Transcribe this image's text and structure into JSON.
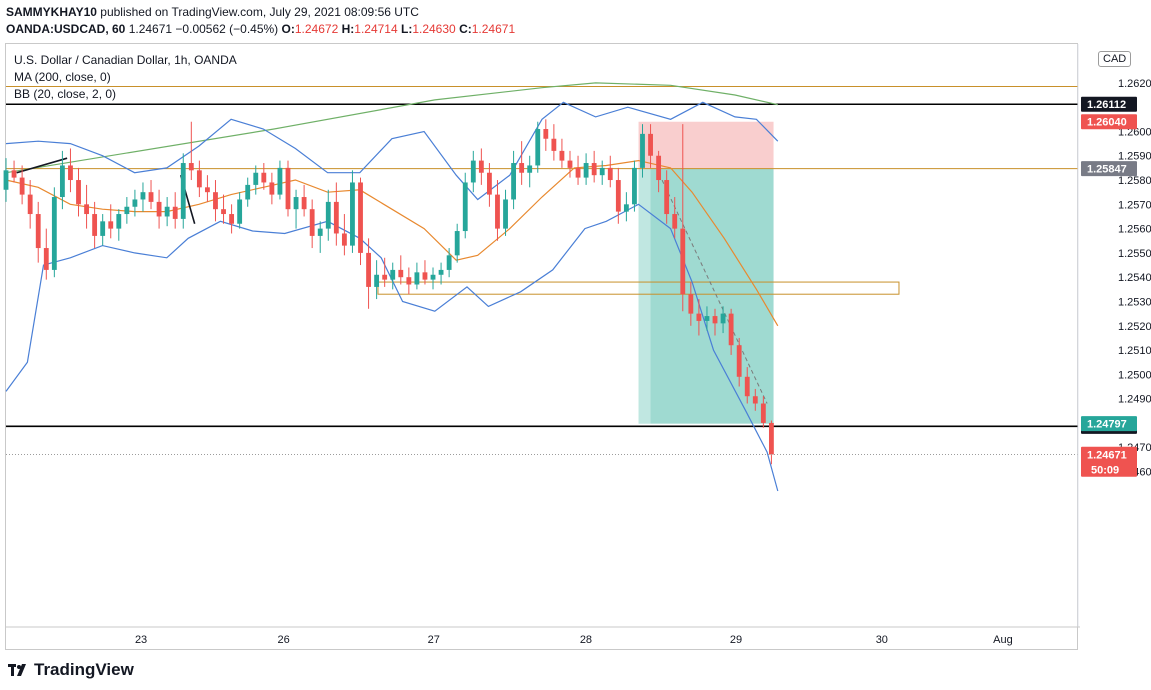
{
  "header": {
    "user": "SAMMYKHAY10",
    "published": "published on TradingView.com, July 29, 2021 08:09:56 UTC",
    "symbol": "OANDA:USDCAD, 60",
    "price": "1.24671",
    "change": "−0.00562 (−0.45%)",
    "o_label": "O:",
    "o_value": "1.24672",
    "h_label": "H:",
    "h_value": "1.24714",
    "l_label": "L:",
    "l_value": "1.24630",
    "c_label": "C:",
    "c_value": "1.24671"
  },
  "legend": {
    "title": "U.S. Dollar / Canadian Dollar, 1h, OANDA",
    "ma": "MA (200, close, 0)",
    "bb": "BB (20, close, 2, 0)"
  },
  "currency": "CAD",
  "brand": "TradingView",
  "colors": {
    "bull": "#26a69a",
    "bear": "#ef5350",
    "bb": "#4a7fd6",
    "ma": "#6fb067",
    "basis": "#e8892f",
    "level": "#c8902a",
    "stop_zone": "#f8c6c6",
    "target_zone": "#8ed3c9",
    "black": "#000000"
  },
  "chart_data": {
    "type": "candlestick",
    "title": "U.S. Dollar / Canadian Dollar, 1h, OANDA",
    "y_range": [
      1.2396,
      1.2636
    ],
    "y_ticks": [
      "1.26200",
      "1.26000",
      "1.25900",
      "1.25800",
      "1.25700",
      "1.25600",
      "1.25500",
      "1.25400",
      "1.25300",
      "1.25200",
      "1.25100",
      "1.25000",
      "1.24900",
      "1.24700",
      "1.24600"
    ],
    "x_ticks": [
      "23",
      "26",
      "27",
      "28",
      "29",
      "30",
      "Aug"
    ],
    "x_tick_positions": [
      0.126,
      0.259,
      0.399,
      0.541,
      0.681,
      0.817,
      0.93
    ],
    "horizontal_lines": [
      {
        "value": 1.26112,
        "label": "1.26112",
        "color": "#000000"
      },
      {
        "value": 1.25847,
        "label": "1.25847",
        "color": "#c8902a"
      },
      {
        "value": 1.24786,
        "label": "1.24786",
        "color": "#000000"
      }
    ],
    "price_tags": [
      {
        "value": 1.2604,
        "label": "1.26040",
        "color": "#ef5350"
      },
      {
        "value": 1.24797,
        "label": "1.24797",
        "color": "#26a69a"
      },
      {
        "value": 1.24671,
        "label": "1.24671",
        "color": "#ef5350",
        "extra": "50:09"
      }
    ],
    "zone_box": {
      "top": 1.2538,
      "bottom": 1.2533
    },
    "position": {
      "entry": 1.25847,
      "stop": 1.2604,
      "target": 1.24797
    },
    "candles": [
      [
        1.2576,
        1.2589,
        1.2571,
        1.2584
      ],
      [
        1.2584,
        1.2588,
        1.2579,
        1.2581
      ],
      [
        1.2581,
        1.2586,
        1.257,
        1.2574
      ],
      [
        1.2574,
        1.258,
        1.256,
        1.2566
      ],
      [
        1.2566,
        1.2571,
        1.2546,
        1.2552
      ],
      [
        1.2552,
        1.256,
        1.2539,
        1.2543
      ],
      [
        1.2543,
        1.2577,
        1.254,
        1.2573
      ],
      [
        1.2573,
        1.2592,
        1.2568,
        1.2586
      ],
      [
        1.2586,
        1.2593,
        1.2575,
        1.258
      ],
      [
        1.258,
        1.2585,
        1.2565,
        1.257
      ],
      [
        1.257,
        1.2578,
        1.256,
        1.2566
      ],
      [
        1.2566,
        1.2571,
        1.2552,
        1.2557
      ],
      [
        1.2557,
        1.2566,
        1.2553,
        1.2563
      ],
      [
        1.2563,
        1.257,
        1.2556,
        1.256
      ],
      [
        1.256,
        1.2568,
        1.2555,
        1.2566
      ],
      [
        1.2566,
        1.2573,
        1.2562,
        1.2569
      ],
      [
        1.2569,
        1.2576,
        1.2565,
        1.2572
      ],
      [
        1.2572,
        1.2579,
        1.2567,
        1.2575
      ],
      [
        1.2575,
        1.258,
        1.2568,
        1.2571
      ],
      [
        1.2571,
        1.2576,
        1.256,
        1.2565
      ],
      [
        1.2565,
        1.2573,
        1.2561,
        1.2569
      ],
      [
        1.2569,
        1.2575,
        1.256,
        1.2564
      ],
      [
        1.2564,
        1.2591,
        1.256,
        1.2587
      ],
      [
        1.2587,
        1.2604,
        1.258,
        1.2584
      ],
      [
        1.2584,
        1.2588,
        1.2573,
        1.2577
      ],
      [
        1.2577,
        1.2582,
        1.2571,
        1.2575
      ],
      [
        1.2575,
        1.258,
        1.2563,
        1.2568
      ],
      [
        1.2568,
        1.2574,
        1.2562,
        1.2566
      ],
      [
        1.2566,
        1.257,
        1.2558,
        1.2562
      ],
      [
        1.2562,
        1.2575,
        1.256,
        1.2572
      ],
      [
        1.2572,
        1.2581,
        1.2569,
        1.2578
      ],
      [
        1.2578,
        1.2586,
        1.2574,
        1.2583
      ],
      [
        1.2583,
        1.2587,
        1.2576,
        1.2579
      ],
      [
        1.2579,
        1.2583,
        1.257,
        1.2574
      ],
      [
        1.2574,
        1.2588,
        1.2572,
        1.2585
      ],
      [
        1.2585,
        1.2588,
        1.2565,
        1.2568
      ],
      [
        1.2568,
        1.2576,
        1.256,
        1.2573
      ],
      [
        1.2573,
        1.2578,
        1.2565,
        1.2568
      ],
      [
        1.2568,
        1.2572,
        1.2552,
        1.2557
      ],
      [
        1.2557,
        1.2563,
        1.255,
        1.256
      ],
      [
        1.256,
        1.2576,
        1.2555,
        1.2571
      ],
      [
        1.2571,
        1.2579,
        1.2553,
        1.2558
      ],
      [
        1.2558,
        1.2566,
        1.2549,
        1.2553
      ],
      [
        1.2553,
        1.2584,
        1.255,
        1.2579
      ],
      [
        1.2579,
        1.2581,
        1.2545,
        1.255
      ],
      [
        1.255,
        1.2556,
        1.2527,
        1.2536
      ],
      [
        1.2536,
        1.2547,
        1.2531,
        1.2541
      ],
      [
        1.2541,
        1.2548,
        1.2536,
        1.2539
      ],
      [
        1.2539,
        1.2546,
        1.2535,
        1.2543
      ],
      [
        1.2543,
        1.2549,
        1.2537,
        1.254
      ],
      [
        1.254,
        1.2544,
        1.2533,
        1.2537
      ],
      [
        1.2537,
        1.2546,
        1.2535,
        1.2542
      ],
      [
        1.2542,
        1.2547,
        1.2537,
        1.2539
      ],
      [
        1.2539,
        1.2544,
        1.2535,
        1.2541
      ],
      [
        1.2541,
        1.2546,
        1.2537,
        1.2543
      ],
      [
        1.2543,
        1.2552,
        1.254,
        1.2549
      ],
      [
        1.2549,
        1.2562,
        1.2546,
        1.2559
      ],
      [
        1.2559,
        1.2583,
        1.2556,
        1.2579
      ],
      [
        1.2579,
        1.2592,
        1.2575,
        1.2588
      ],
      [
        1.2588,
        1.2593,
        1.2578,
        1.2583
      ],
      [
        1.2583,
        1.2587,
        1.2569,
        1.2574
      ],
      [
        1.2574,
        1.258,
        1.2555,
        1.256
      ],
      [
        1.256,
        1.2576,
        1.2557,
        1.2572
      ],
      [
        1.2572,
        1.2592,
        1.2568,
        1.2587
      ],
      [
        1.2587,
        1.2596,
        1.2578,
        1.2583
      ],
      [
        1.2583,
        1.259,
        1.2577,
        1.2586
      ],
      [
        1.2586,
        1.2604,
        1.2583,
        1.2601
      ],
      [
        1.2601,
        1.2605,
        1.2592,
        1.2597
      ],
      [
        1.2597,
        1.2603,
        1.2588,
        1.2592
      ],
      [
        1.2592,
        1.2597,
        1.2585,
        1.2588
      ],
      [
        1.2588,
        1.2592,
        1.2581,
        1.2585
      ],
      [
        1.2585,
        1.259,
        1.2578,
        1.2581
      ],
      [
        1.2581,
        1.2591,
        1.2578,
        1.2587
      ],
      [
        1.2587,
        1.2592,
        1.2579,
        1.2582
      ],
      [
        1.2582,
        1.2588,
        1.2578,
        1.2585
      ],
      [
        1.2585,
        1.259,
        1.2577,
        1.258
      ],
      [
        1.258,
        1.2585,
        1.2562,
        1.2567
      ],
      [
        1.2567,
        1.2575,
        1.2563,
        1.257
      ],
      [
        1.257,
        1.2588,
        1.2567,
        1.2585
      ],
      [
        1.2585,
        1.2603,
        1.2581,
        1.2599
      ],
      [
        1.2599,
        1.2603,
        1.2585,
        1.259
      ],
      [
        1.259,
        1.2592,
        1.2575,
        1.258
      ],
      [
        1.258,
        1.2584,
        1.2562,
        1.2566
      ],
      [
        1.2566,
        1.2573,
        1.2556,
        1.256
      ],
      [
        1.256,
        1.2603,
        1.2526,
        1.2533
      ],
      [
        1.2533,
        1.2538,
        1.252,
        1.2525
      ],
      [
        1.2525,
        1.2531,
        1.2516,
        1.2522
      ],
      [
        1.2522,
        1.2528,
        1.2518,
        1.2524
      ],
      [
        1.2524,
        1.2527,
        1.2516,
        1.2521
      ],
      [
        1.2521,
        1.2528,
        1.2517,
        1.2525
      ],
      [
        1.2525,
        1.2527,
        1.2508,
        1.2512
      ],
      [
        1.2512,
        1.2515,
        1.2495,
        1.2499
      ],
      [
        1.2499,
        1.2503,
        1.2488,
        1.2491
      ],
      [
        1.2491,
        1.2494,
        1.2485,
        1.2488
      ],
      [
        1.2488,
        1.2491,
        1.2478,
        1.248
      ],
      [
        1.248,
        1.2481,
        1.2463,
        1.2467
      ]
    ],
    "ma200": [
      [
        0,
        1.2583
      ],
      [
        0.25,
        1.2601
      ],
      [
        0.4,
        1.2613
      ],
      [
        0.5,
        1.2618
      ],
      [
        0.55,
        1.262
      ],
      [
        0.62,
        1.2619
      ],
      [
        0.68,
        1.2615
      ],
      [
        0.72,
        1.2611
      ]
    ],
    "bb_upper": [
      [
        0,
        1.2595
      ],
      [
        0.03,
        1.2596
      ],
      [
        0.06,
        1.2595
      ],
      [
        0.09,
        1.259
      ],
      [
        0.12,
        1.2583
      ],
      [
        0.15,
        1.2585
      ],
      [
        0.18,
        1.2594
      ],
      [
        0.21,
        1.2605
      ],
      [
        0.24,
        1.2601
      ],
      [
        0.27,
        1.2593
      ],
      [
        0.3,
        1.2583
      ],
      [
        0.33,
        1.2583
      ],
      [
        0.36,
        1.2597
      ],
      [
        0.39,
        1.26
      ],
      [
        0.42,
        1.2582
      ],
      [
        0.44,
        1.2572
      ],
      [
        0.47,
        1.2582
      ],
      [
        0.5,
        1.2605
      ],
      [
        0.52,
        1.2612
      ],
      [
        0.55,
        1.2606
      ],
      [
        0.58,
        1.261
      ],
      [
        0.62,
        1.2605
      ],
      [
        0.65,
        1.2612
      ],
      [
        0.68,
        1.2606
      ],
      [
        0.7,
        1.2605
      ],
      [
        0.72,
        1.2596
      ]
    ],
    "bb_lower": [
      [
        0,
        1.2493
      ],
      [
        0.02,
        1.2505
      ],
      [
        0.035,
        1.2545
      ],
      [
        0.06,
        1.2548
      ],
      [
        0.09,
        1.2553
      ],
      [
        0.12,
        1.255
      ],
      [
        0.15,
        1.2548
      ],
      [
        0.17,
        1.2556
      ],
      [
        0.2,
        1.2563
      ],
      [
        0.23,
        1.2559
      ],
      [
        0.26,
        1.2558
      ],
      [
        0.3,
        1.2563
      ],
      [
        0.33,
        1.2556
      ],
      [
        0.35,
        1.2548
      ],
      [
        0.37,
        1.253
      ],
      [
        0.4,
        1.2526
      ],
      [
        0.43,
        1.2536
      ],
      [
        0.45,
        1.2528
      ],
      [
        0.48,
        1.2534
      ],
      [
        0.51,
        1.2543
      ],
      [
        0.54,
        1.256
      ],
      [
        0.56,
        1.2563
      ],
      [
        0.59,
        1.257
      ],
      [
        0.62,
        1.256
      ],
      [
        0.64,
        1.2538
      ],
      [
        0.66,
        1.251
      ],
      [
        0.69,
        1.2485
      ],
      [
        0.71,
        1.2468
      ],
      [
        0.72,
        1.2452
      ]
    ],
    "bb_basis": [
      [
        0,
        1.258
      ],
      [
        0.03,
        1.2577
      ],
      [
        0.06,
        1.257
      ],
      [
        0.09,
        1.2568
      ],
      [
        0.12,
        1.2567
      ],
      [
        0.15,
        1.2567
      ],
      [
        0.18,
        1.257
      ],
      [
        0.21,
        1.2574
      ],
      [
        0.24,
        1.2577
      ],
      [
        0.27,
        1.258
      ],
      [
        0.3,
        1.2575
      ],
      [
        0.33,
        1.2576
      ],
      [
        0.36,
        1.2568
      ],
      [
        0.39,
        1.256
      ],
      [
        0.42,
        1.2547
      ],
      [
        0.44,
        1.2549
      ],
      [
        0.47,
        1.256
      ],
      [
        0.5,
        1.2573
      ],
      [
        0.53,
        1.2585
      ],
      [
        0.56,
        1.2586
      ],
      [
        0.59,
        1.2588
      ],
      [
        0.62,
        1.2585
      ],
      [
        0.64,
        1.2575
      ],
      [
        0.67,
        1.2556
      ],
      [
        0.7,
        1.2535
      ],
      [
        0.72,
        1.252
      ]
    ]
  }
}
